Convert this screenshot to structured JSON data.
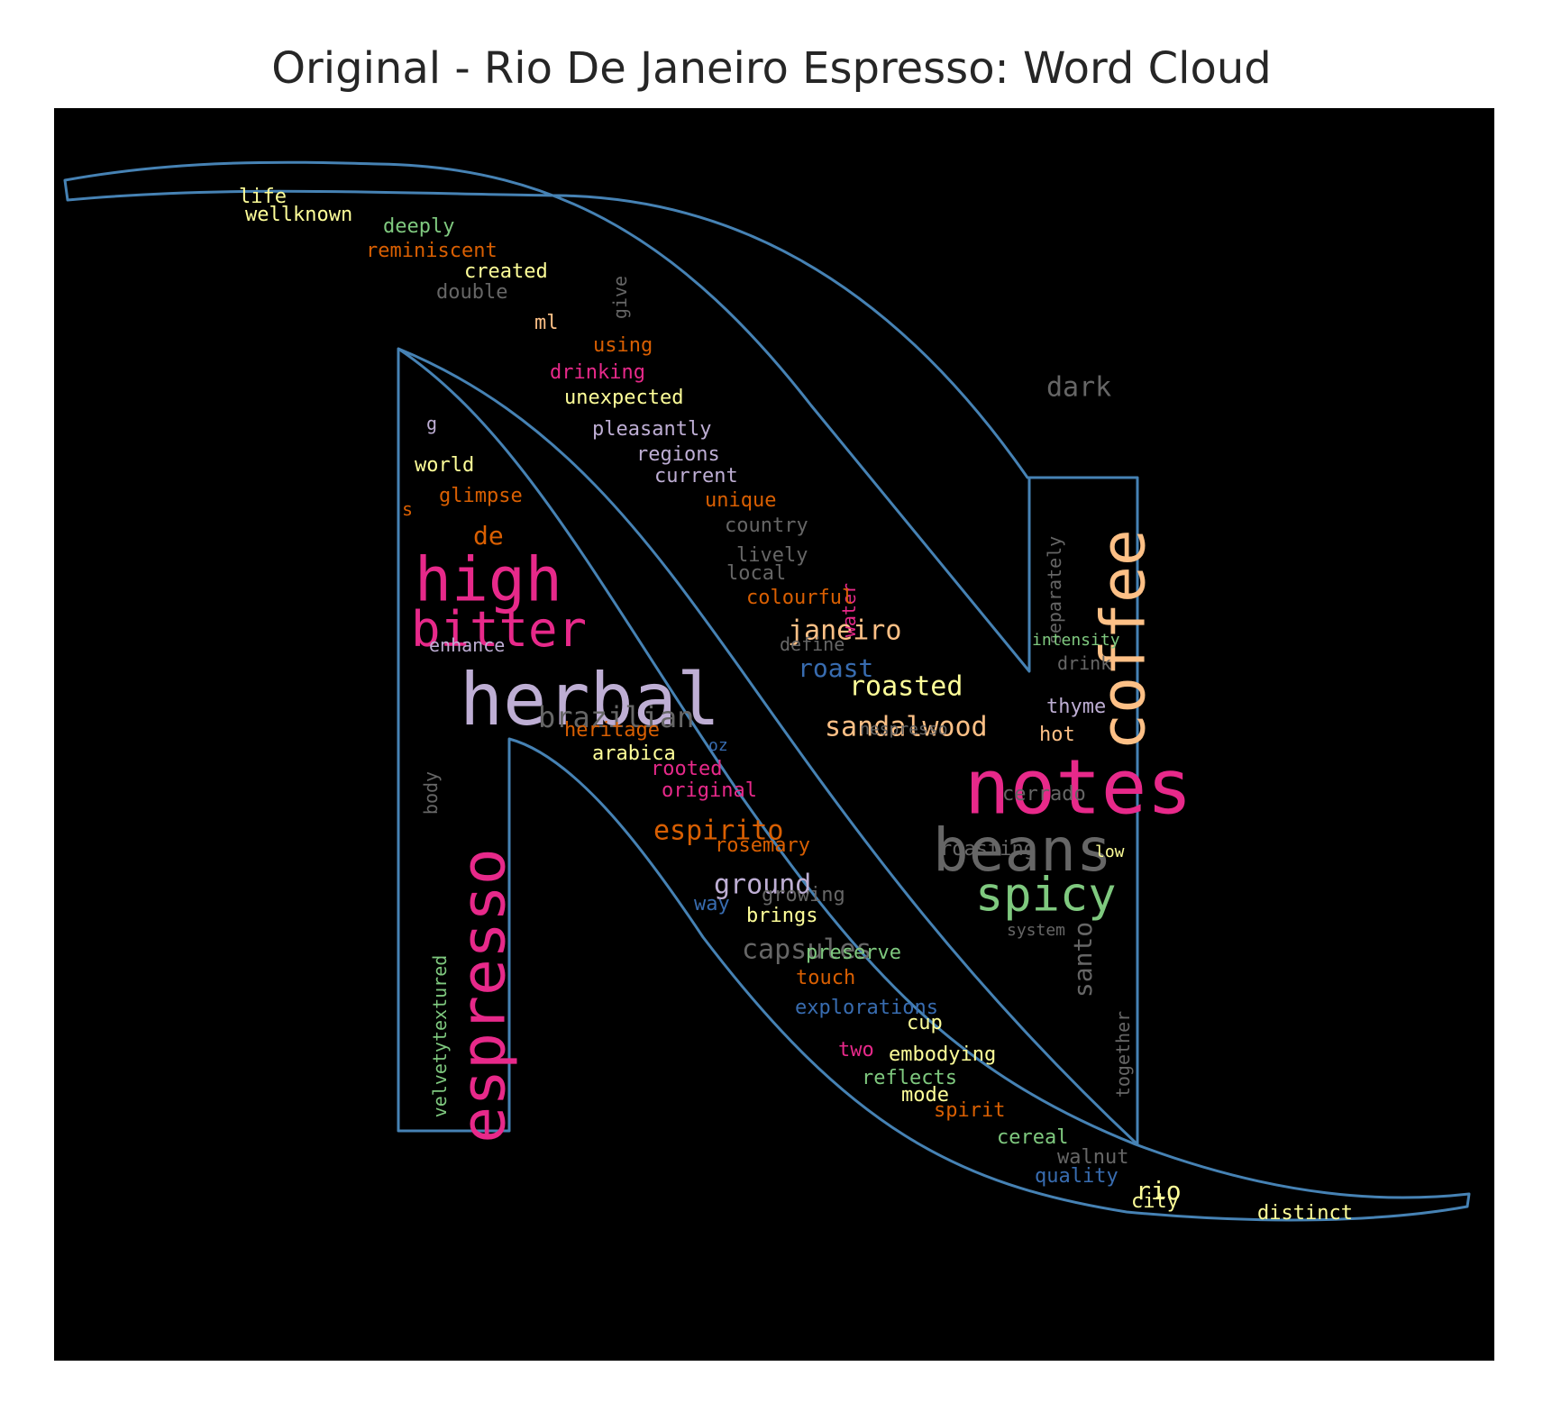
{
  "title": "Original - Rio De Janeiro Espresso: Word Cloud",
  "colors": {
    "background": "#000000",
    "outline": "#4682b4",
    "page": "#ffffff",
    "title": "#262626"
  },
  "words": [
    {
      "text": "notes",
      "color": "#e7298a"
    },
    {
      "text": "herbal",
      "color": "#beaed4"
    },
    {
      "text": "espresso",
      "color": "#e7298a"
    },
    {
      "text": "coffee",
      "color": "#fdc086"
    },
    {
      "text": "beans",
      "color": "#666666"
    },
    {
      "text": "high",
      "color": "#e7298a"
    },
    {
      "text": "bitter",
      "color": "#e7298a"
    },
    {
      "text": "spicy",
      "color": "#7fc97f"
    },
    {
      "text": "brazilian",
      "color": "#666666"
    },
    {
      "text": "sandalwood",
      "color": "#fdc086"
    },
    {
      "text": "roasted",
      "color": "#ffff99"
    },
    {
      "text": "janeiro",
      "color": "#fdc086"
    },
    {
      "text": "espirito",
      "color": "#d95f02"
    },
    {
      "text": "ground",
      "color": "#beaed4"
    },
    {
      "text": "capsules",
      "color": "#666666"
    },
    {
      "text": "santo",
      "color": "#666666"
    },
    {
      "text": "dark",
      "color": "#666666"
    },
    {
      "text": "roast",
      "color": "#386cb0"
    },
    {
      "text": "de",
      "color": "#d95f02"
    },
    {
      "text": "rio",
      "color": "#ffff99"
    },
    {
      "text": "life",
      "color": "#ffff99"
    },
    {
      "text": "wellknown",
      "color": "#ffff99"
    },
    {
      "text": "deeply",
      "color": "#7fc97f"
    },
    {
      "text": "reminiscent",
      "color": "#d95f02"
    },
    {
      "text": "created",
      "color": "#ffff99"
    },
    {
      "text": "double",
      "color": "#666666"
    },
    {
      "text": "give",
      "color": "#666666"
    },
    {
      "text": "ml",
      "color": "#fdc086"
    },
    {
      "text": "using",
      "color": "#d95f02"
    },
    {
      "text": "drinking",
      "color": "#e7298a"
    },
    {
      "text": "unexpected",
      "color": "#ffff99"
    },
    {
      "text": "g",
      "color": "#beaed4"
    },
    {
      "text": "pleasantly",
      "color": "#beaed4"
    },
    {
      "text": "regions",
      "color": "#beaed4"
    },
    {
      "text": "current",
      "color": "#beaed4"
    },
    {
      "text": "world",
      "color": "#ffff99"
    },
    {
      "text": "glimpse",
      "color": "#d95f02"
    },
    {
      "text": "s",
      "color": "#d95f02"
    },
    {
      "text": "unique",
      "color": "#d95f02"
    },
    {
      "text": "country",
      "color": "#666666"
    },
    {
      "text": "water",
      "color": "#e7298a"
    },
    {
      "text": "lively",
      "color": "#666666"
    },
    {
      "text": "local",
      "color": "#666666"
    },
    {
      "text": "colourful",
      "color": "#d95f02"
    },
    {
      "text": "separately",
      "color": "#666666"
    },
    {
      "text": "enhance",
      "color": "#beaed4"
    },
    {
      "text": "define",
      "color": "#666666"
    },
    {
      "text": "intensity",
      "color": "#7fc97f"
    },
    {
      "text": "drink",
      "color": "#666666"
    },
    {
      "text": "thyme",
      "color": "#beaed4"
    },
    {
      "text": "heritage",
      "color": "#d95f02"
    },
    {
      "text": "nespresso",
      "color": "#666666"
    },
    {
      "text": "hot",
      "color": "#fdc086"
    },
    {
      "text": "body",
      "color": "#666666"
    },
    {
      "text": "arabica",
      "color": "#ffff99"
    },
    {
      "text": "oz",
      "color": "#386cb0"
    },
    {
      "text": "rooted",
      "color": "#e7298a"
    },
    {
      "text": "original",
      "color": "#e7298a"
    },
    {
      "text": "cerrado",
      "color": "#666666"
    },
    {
      "text": "rosemary",
      "color": "#d95f02"
    },
    {
      "text": "roasting",
      "color": "#666666"
    },
    {
      "text": "low",
      "color": "#ffff99"
    },
    {
      "text": "velvetytextured",
      "color": "#7fc97f"
    },
    {
      "text": "growing",
      "color": "#666666"
    },
    {
      "text": "way",
      "color": "#386cb0"
    },
    {
      "text": "brings",
      "color": "#ffff99"
    },
    {
      "text": "system",
      "color": "#666666"
    },
    {
      "text": "together",
      "color": "#666666"
    },
    {
      "text": "preserve",
      "color": "#7fc97f"
    },
    {
      "text": "touch",
      "color": "#d95f02"
    },
    {
      "text": "explorations",
      "color": "#386cb0"
    },
    {
      "text": "cup",
      "color": "#ffff99"
    },
    {
      "text": "two",
      "color": "#e7298a"
    },
    {
      "text": "embodying",
      "color": "#ffff99"
    },
    {
      "text": "reflects",
      "color": "#7fc97f"
    },
    {
      "text": "mode",
      "color": "#ffff99"
    },
    {
      "text": "spirit",
      "color": "#d95f02"
    },
    {
      "text": "cereal",
      "color": "#7fc97f"
    },
    {
      "text": "walnut",
      "color": "#666666"
    },
    {
      "text": "quality",
      "color": "#386cb0"
    },
    {
      "text": "city",
      "color": "#ffff99"
    },
    {
      "text": "distinct",
      "color": "#ffff99"
    }
  ]
}
